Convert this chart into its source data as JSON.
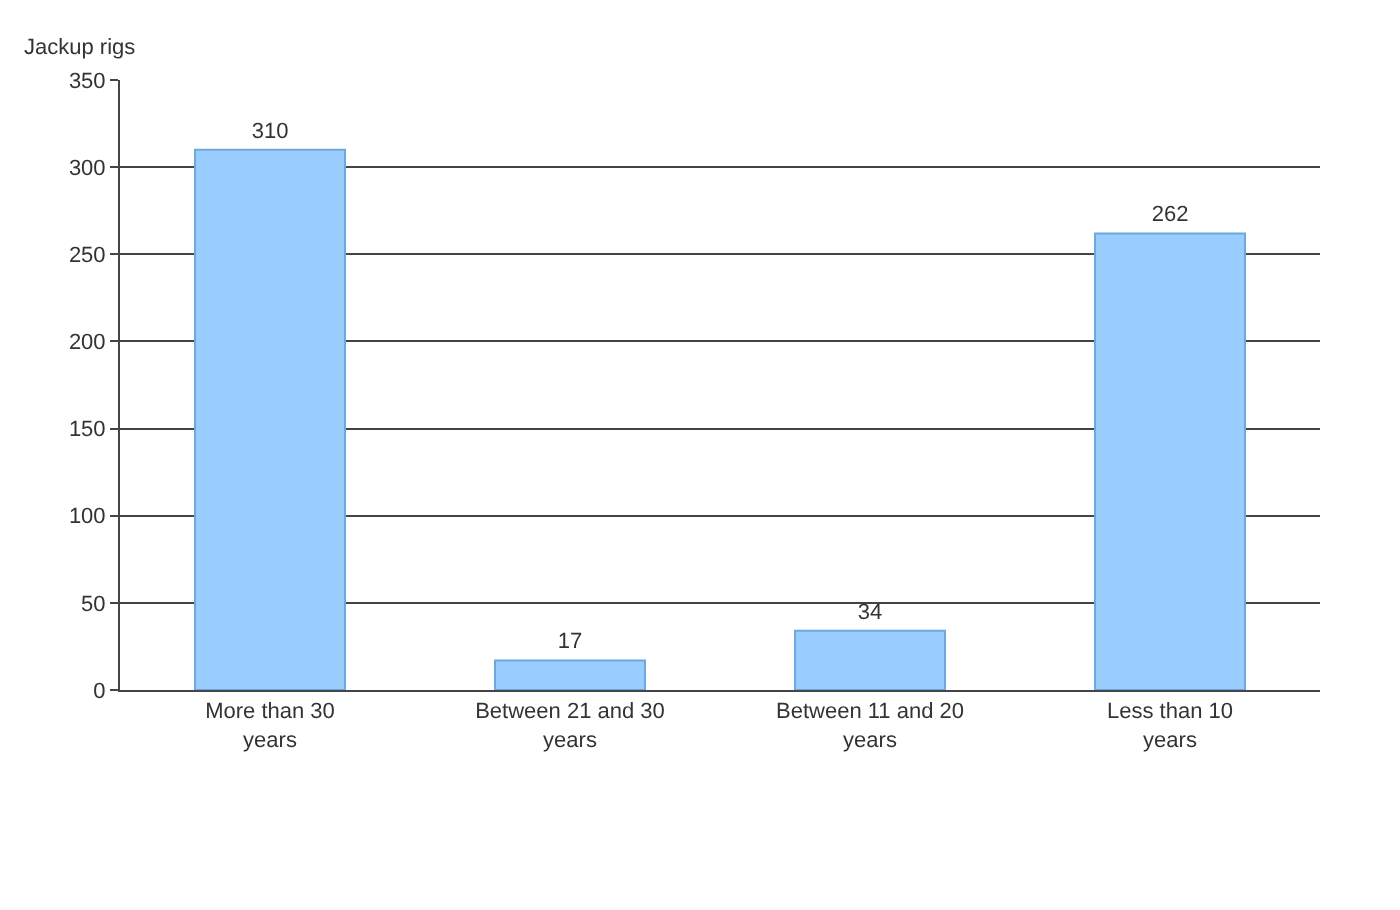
{
  "chart_data": {
    "type": "bar",
    "ylabel": "Jackup rigs",
    "categories": [
      "More than 30 years",
      "Between 21 and 30 years",
      "Between 11 and 20 years",
      "Less than 10 years"
    ],
    "values": [
      310,
      17,
      34,
      262
    ],
    "color": "#99ccff",
    "ylim": [
      0,
      350
    ],
    "yticks": [
      0,
      50,
      100,
      150,
      200,
      250,
      300,
      350
    ],
    "grid": "y",
    "data_labels": true
  }
}
